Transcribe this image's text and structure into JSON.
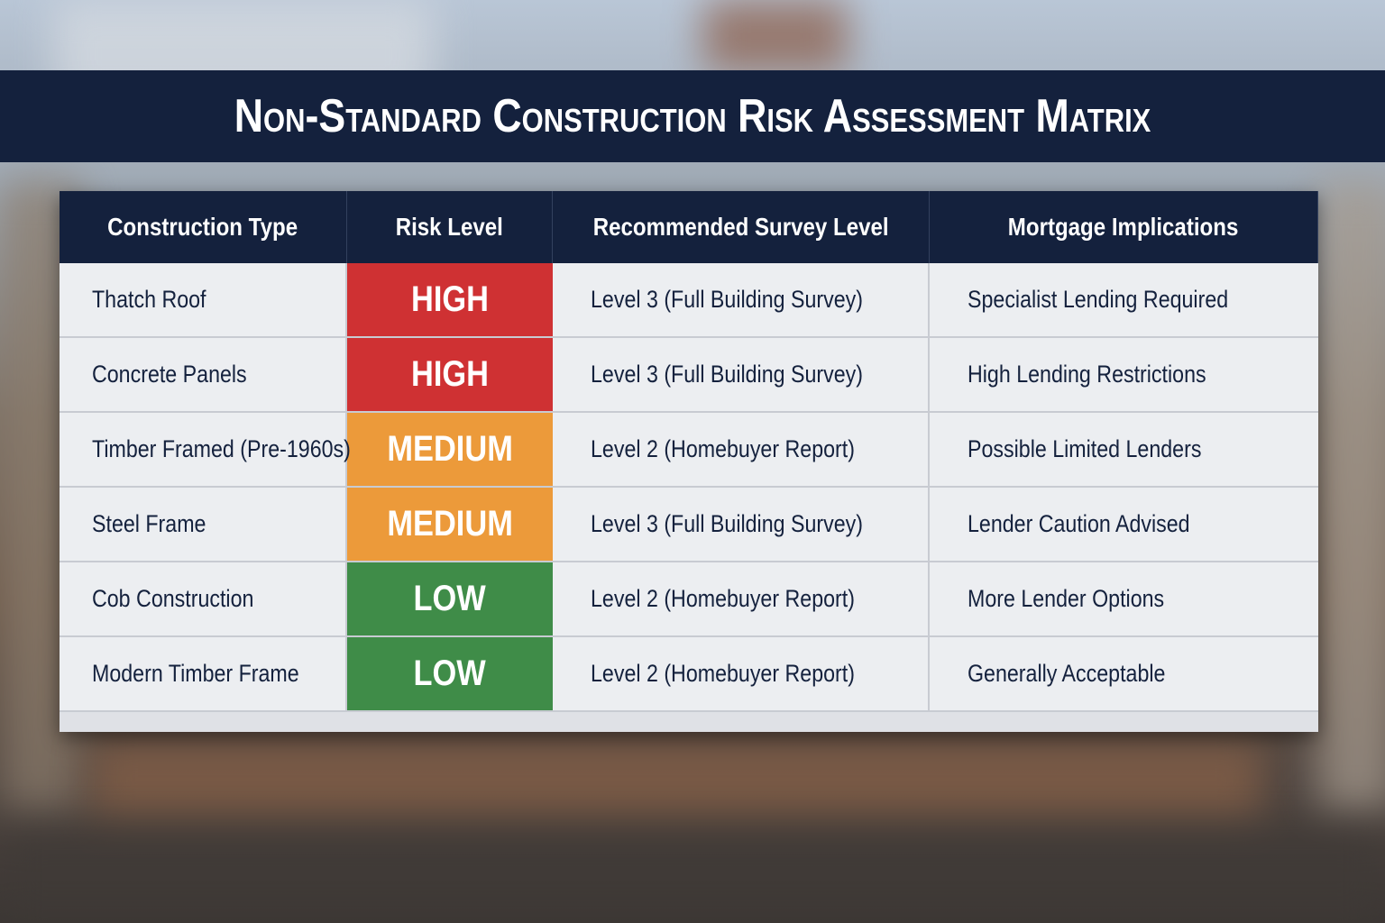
{
  "title": "Non-Standard Construction Risk Assessment Matrix",
  "table": {
    "headers": [
      "Construction Type",
      "Risk Level",
      "Recommended Survey Level",
      "Mortgage Implications"
    ],
    "rows": [
      {
        "type": "Thatch Roof",
        "risk": "HIGH",
        "risk_color": "#cf3133",
        "survey": "Level 3 (Full Building Survey)",
        "mortgage": "Specialist Lending Required"
      },
      {
        "type": "Concrete Panels",
        "risk": "HIGH",
        "risk_color": "#cf3133",
        "survey": "Level 3 (Full Building Survey)",
        "mortgage": "High Lending Restrictions"
      },
      {
        "type": "Timber Framed (Pre-1960s)",
        "risk": "MEDIUM",
        "risk_color": "#ec9a3a",
        "survey": "Level 2 (Homebuyer Report)",
        "mortgage": "Possible Limited Lenders"
      },
      {
        "type": "Steel Frame",
        "risk": "MEDIUM",
        "risk_color": "#ec9a3a",
        "survey": "Level 3 (Full Building Survey)",
        "mortgage": "Lender Caution Advised"
      },
      {
        "type": "Cob Construction",
        "risk": "LOW",
        "risk_color": "#3f8c48",
        "survey": "Level 2 (Homebuyer Report)",
        "mortgage": "More Lender Options"
      },
      {
        "type": "Modern Timber Frame",
        "risk": "LOW",
        "risk_color": "#3f8c48",
        "survey": "Level 2 (Homebuyer Report)",
        "mortgage": "Generally Acceptable"
      }
    ]
  }
}
